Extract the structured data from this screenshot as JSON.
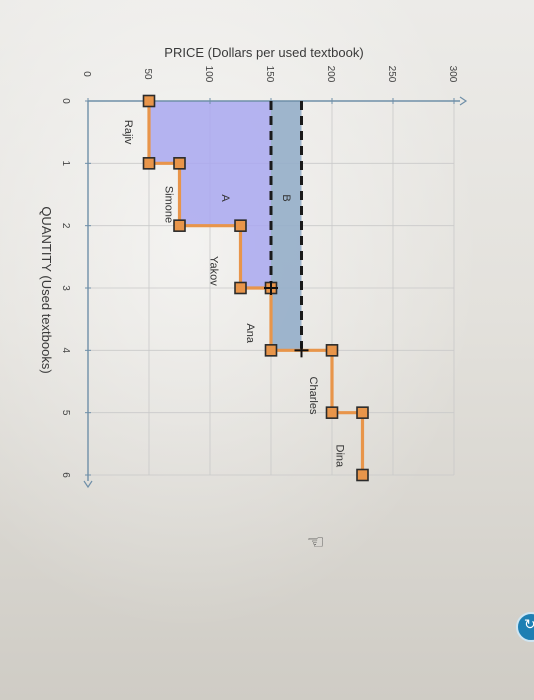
{
  "chart_data": {
    "type": "line",
    "orientation": "rotated 90 degrees clockwise",
    "title": "",
    "xlabel": "QUANTITY (Used textbooks)",
    "ylabel": "PRICE (Dollars per used textbook)",
    "xlim": [
      0,
      6
    ],
    "ylim": [
      0,
      300
    ],
    "x_ticks": [
      "0",
      "1",
      "2",
      "3",
      "4",
      "5",
      "6"
    ],
    "y_ticks": [
      "0",
      "50",
      "100",
      "150",
      "200",
      "250",
      "300"
    ],
    "grid": true,
    "series": [
      {
        "name": "",
        "color": "#e8954a",
        "points": [
          {
            "x": 0,
            "y": 50
          },
          {
            "x": 1,
            "y": 50
          },
          {
            "x": 1,
            "y": 75
          },
          {
            "x": 2,
            "y": 75
          },
          {
            "x": 2,
            "y": 125
          },
          {
            "x": 3,
            "y": 125
          },
          {
            "x": 3,
            "y": 150
          },
          {
            "x": 4,
            "y": 150
          },
          {
            "x": 4,
            "y": 200
          },
          {
            "x": 5,
            "y": 200
          },
          {
            "x": 5,
            "y": 225
          },
          {
            "x": 6,
            "y": 225
          }
        ]
      }
    ],
    "step_labels": [
      {
        "text": "Rajiv",
        "x": 0.5,
        "y": 50
      },
      {
        "text": "Simone",
        "x": 1.5,
        "y": 75
      },
      {
        "text": "Yakov",
        "x": 2.5,
        "y": 125
      },
      {
        "text": "Ana",
        "x": 3.5,
        "y": 150
      },
      {
        "text": "Charles",
        "x": 4.5,
        "y": 200
      },
      {
        "text": "Dina",
        "x": 5.5,
        "y": 225
      }
    ],
    "price_lines": [
      {
        "price": 150,
        "x_end": 3
      },
      {
        "price": 175,
        "x_end": 4
      }
    ],
    "areas": [
      {
        "label": "A",
        "color": "#a9a8f0",
        "y_from": 50,
        "y_to": 150,
        "steps": [
          [
            0,
            1,
            50
          ],
          [
            1,
            2,
            75
          ],
          [
            2,
            3,
            125
          ]
        ]
      },
      {
        "label": "B",
        "color": "#95aec9",
        "y_from": 150,
        "y_to": 175,
        "x_from": 0,
        "x_to": 4
      }
    ],
    "area_labels": [
      "A",
      "B"
    ],
    "crosshair_markers": [
      {
        "x": 3,
        "y": 150
      },
      {
        "x": 4,
        "y": 175
      }
    ],
    "colors": {
      "step_line": "#e8954a",
      "marker_fill": "#e8954a",
      "marker_stroke": "#2b2b2b",
      "area_a": "#a9a8f0",
      "area_b": "#95aec9",
      "dashed_line": "#1a1a1a"
    }
  }
}
